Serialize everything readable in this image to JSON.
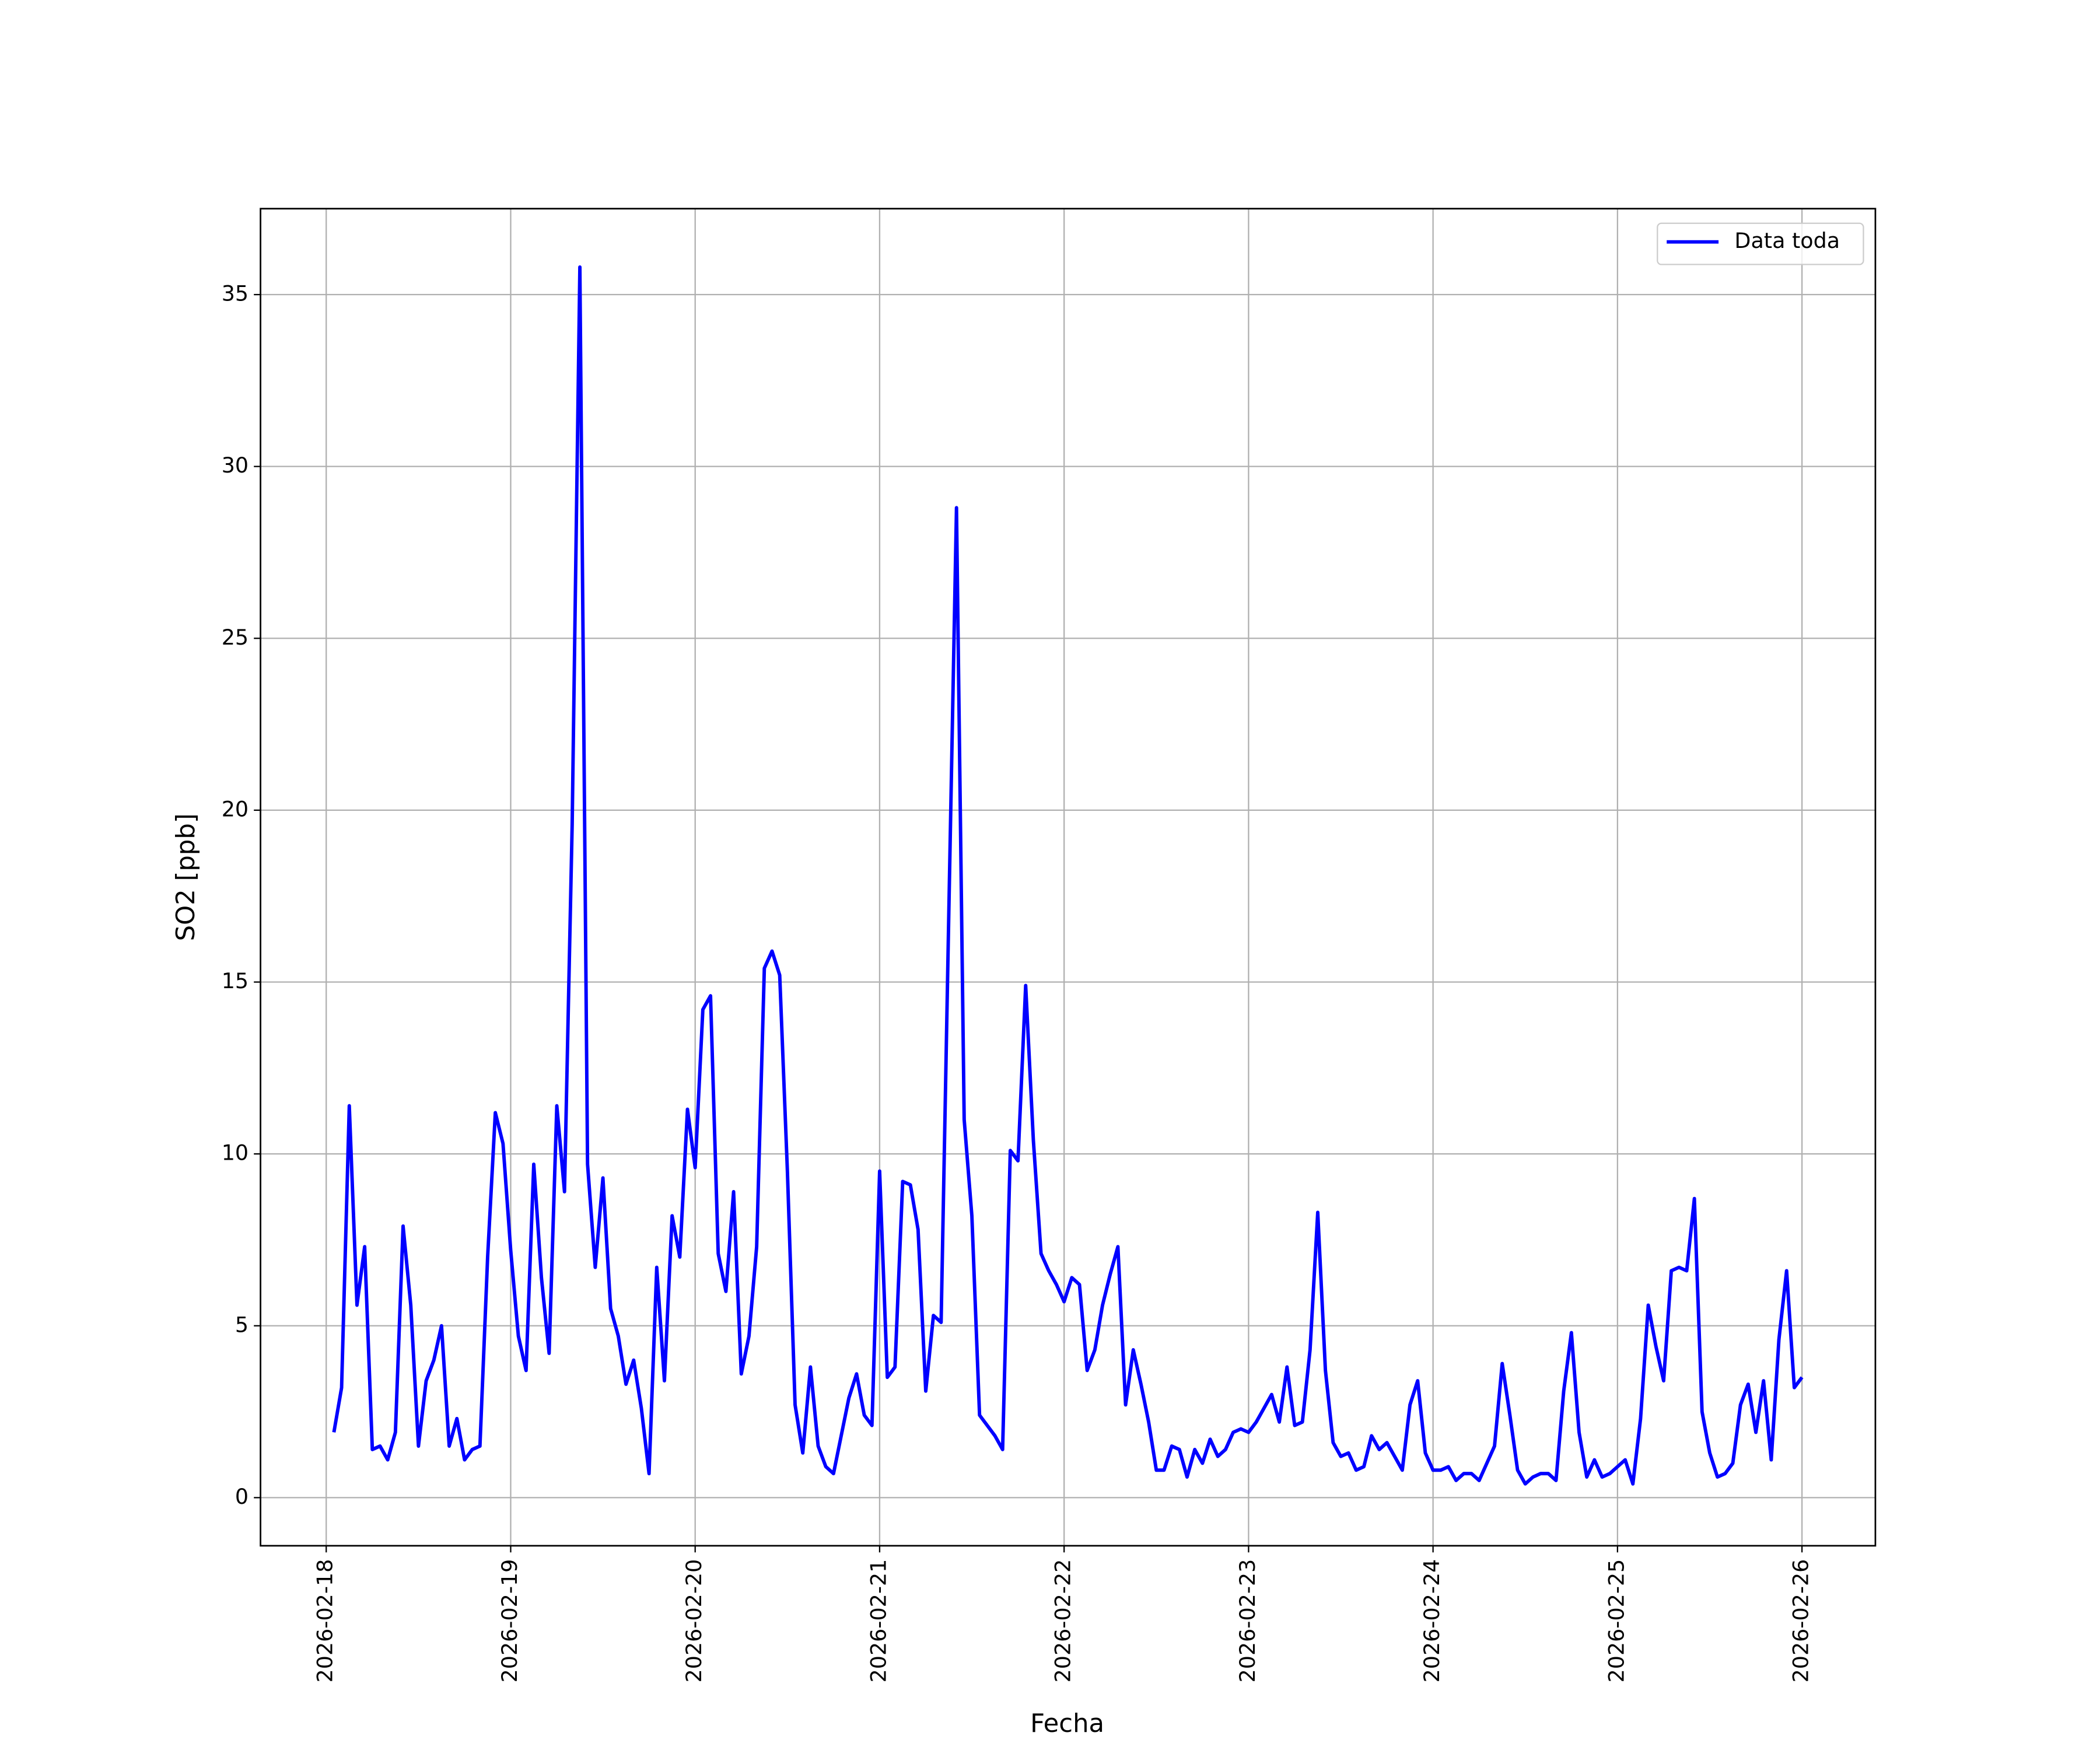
{
  "chart_data": {
    "type": "line",
    "xlabel": "Fecha",
    "ylabel": "SO2 [ppb]",
    "x": [
      "2026-02-18 01:00",
      "2026-02-18 02:00",
      "2026-02-18 03:00",
      "2026-02-18 04:00",
      "2026-02-18 05:00",
      "2026-02-18 06:00",
      "2026-02-18 07:00",
      "2026-02-18 08:00",
      "2026-02-18 09:00",
      "2026-02-18 10:00",
      "2026-02-18 11:00",
      "2026-02-18 12:00",
      "2026-02-18 13:00",
      "2026-02-18 14:00",
      "2026-02-18 15:00",
      "2026-02-18 16:00",
      "2026-02-18 17:00",
      "2026-02-18 18:00",
      "2026-02-18 19:00",
      "2026-02-18 20:00",
      "2026-02-18 21:00",
      "2026-02-18 22:00",
      "2026-02-18 23:00",
      "2026-02-19 00:00",
      "2026-02-19 01:00",
      "2026-02-19 02:00",
      "2026-02-19 03:00",
      "2026-02-19 04:00",
      "2026-02-19 05:00",
      "2026-02-19 06:00",
      "2026-02-19 07:00",
      "2026-02-19 08:00",
      "2026-02-19 09:00",
      "2026-02-19 10:00",
      "2026-02-19 11:00",
      "2026-02-19 12:00",
      "2026-02-19 13:00",
      "2026-02-19 14:00",
      "2026-02-19 15:00",
      "2026-02-19 16:00",
      "2026-02-19 17:00",
      "2026-02-19 18:00",
      "2026-02-19 19:00",
      "2026-02-19 20:00",
      "2026-02-19 21:00",
      "2026-02-19 22:00",
      "2026-02-19 23:00",
      "2026-02-20 00:00",
      "2026-02-20 01:00",
      "2026-02-20 02:00",
      "2026-02-20 03:00",
      "2026-02-20 04:00",
      "2026-02-20 05:00",
      "2026-02-20 06:00",
      "2026-02-20 07:00",
      "2026-02-20 08:00",
      "2026-02-20 09:00",
      "2026-02-20 10:00",
      "2026-02-20 11:00",
      "2026-02-20 12:00",
      "2026-02-20 13:00",
      "2026-02-20 14:00",
      "2026-02-20 15:00",
      "2026-02-20 16:00",
      "2026-02-20 17:00",
      "2026-02-20 18:00",
      "2026-02-20 19:00",
      "2026-02-20 20:00",
      "2026-02-20 21:00",
      "2026-02-20 22:00",
      "2026-02-20 23:00",
      "2026-02-21 00:00",
      "2026-02-21 01:00",
      "2026-02-21 02:00",
      "2026-02-21 03:00",
      "2026-02-21 04:00",
      "2026-02-21 05:00",
      "2026-02-21 06:00",
      "2026-02-21 07:00",
      "2026-02-21 08:00",
      "2026-02-21 09:00",
      "2026-02-21 10:00",
      "2026-02-21 11:00",
      "2026-02-21 12:00",
      "2026-02-21 13:00",
      "2026-02-21 14:00",
      "2026-02-21 15:00",
      "2026-02-21 16:00",
      "2026-02-21 17:00",
      "2026-02-21 18:00",
      "2026-02-21 19:00",
      "2026-02-21 20:00",
      "2026-02-21 21:00",
      "2026-02-21 22:00",
      "2026-02-21 23:00",
      "2026-02-22 00:00",
      "2026-02-22 01:00",
      "2026-02-22 02:00",
      "2026-02-22 03:00",
      "2026-02-22 04:00",
      "2026-02-22 05:00",
      "2026-02-22 06:00",
      "2026-02-22 07:00",
      "2026-02-22 08:00",
      "2026-02-22 09:00",
      "2026-02-22 10:00",
      "2026-02-22 11:00",
      "2026-02-22 12:00",
      "2026-02-22 13:00",
      "2026-02-22 14:00",
      "2026-02-22 15:00",
      "2026-02-22 16:00",
      "2026-02-22 17:00",
      "2026-02-22 18:00",
      "2026-02-22 19:00",
      "2026-02-22 20:00",
      "2026-02-22 21:00",
      "2026-02-22 22:00",
      "2026-02-22 23:00",
      "2026-02-23 00:00",
      "2026-02-23 01:00",
      "2026-02-23 02:00",
      "2026-02-23 03:00",
      "2026-02-23 04:00",
      "2026-02-23 05:00",
      "2026-02-23 06:00",
      "2026-02-23 07:00",
      "2026-02-23 08:00",
      "2026-02-23 09:00",
      "2026-02-23 10:00",
      "2026-02-23 11:00",
      "2026-02-23 12:00",
      "2026-02-23 13:00",
      "2026-02-23 14:00",
      "2026-02-23 15:00",
      "2026-02-23 16:00",
      "2026-02-23 17:00",
      "2026-02-23 18:00",
      "2026-02-23 19:00",
      "2026-02-23 20:00",
      "2026-02-23 21:00",
      "2026-02-23 22:00",
      "2026-02-23 23:00",
      "2026-02-24 00:00",
      "2026-02-24 01:00",
      "2026-02-24 02:00",
      "2026-02-24 03:00",
      "2026-02-24 04:00",
      "2026-02-24 05:00",
      "2026-02-24 06:00",
      "2026-02-24 07:00",
      "2026-02-24 08:00",
      "2026-02-24 09:00",
      "2026-02-24 10:00",
      "2026-02-24 11:00",
      "2026-02-24 12:00",
      "2026-02-24 13:00",
      "2026-02-24 14:00",
      "2026-02-24 15:00",
      "2026-02-24 16:00",
      "2026-02-24 17:00",
      "2026-02-24 18:00",
      "2026-02-24 19:00",
      "2026-02-24 20:00",
      "2026-02-24 21:00",
      "2026-02-24 22:00",
      "2026-02-24 23:00",
      "2026-02-25 00:00",
      "2026-02-25 01:00",
      "2026-02-25 02:00",
      "2026-02-25 03:00",
      "2026-02-25 04:00",
      "2026-02-25 05:00",
      "2026-02-25 06:00",
      "2026-02-25 07:00",
      "2026-02-25 08:00",
      "2026-02-25 09:00",
      "2026-02-25 10:00",
      "2026-02-25 11:00",
      "2026-02-25 12:00",
      "2026-02-25 13:00",
      "2026-02-25 14:00",
      "2026-02-25 15:00",
      "2026-02-25 16:00",
      "2026-02-25 17:00",
      "2026-02-25 18:00",
      "2026-02-25 19:00",
      "2026-02-25 20:00",
      "2026-02-25 21:00",
      "2026-02-25 22:00",
      "2026-02-25 23:00",
      "2026-02-26 00:00"
    ],
    "series": [
      {
        "name": "Data toda",
        "color": "#0000ff",
        "values": [
          1.9,
          3.2,
          11.4,
          5.6,
          7.3,
          1.4,
          1.5,
          1.1,
          1.9,
          7.9,
          5.6,
          1.5,
          3.4,
          4.0,
          5.0,
          1.5,
          2.3,
          1.1,
          1.4,
          1.5,
          7.0,
          11.2,
          10.3,
          7.2,
          4.7,
          3.7,
          9.7,
          6.4,
          4.2,
          11.4,
          8.9,
          19.6,
          35.8,
          9.7,
          6.7,
          9.3,
          5.5,
          4.7,
          3.3,
          4.0,
          2.6,
          0.7,
          6.7,
          3.4,
          8.2,
          7.0,
          11.3,
          9.6,
          14.2,
          14.6,
          7.1,
          6.0,
          8.9,
          3.6,
          4.7,
          7.3,
          15.4,
          15.9,
          15.2,
          9.5,
          2.7,
          1.3,
          3.8,
          1.5,
          0.9,
          0.7,
          1.8,
          2.9,
          3.6,
          2.4,
          2.1,
          9.5,
          3.5,
          3.8,
          9.2,
          9.1,
          7.8,
          3.1,
          5.3,
          5.1,
          17.0,
          28.8,
          11.0,
          8.2,
          2.4,
          2.1,
          1.8,
          1.4,
          10.1,
          9.8,
          14.9,
          10.4,
          7.1,
          6.6,
          6.2,
          5.7,
          6.4,
          6.2,
          3.7,
          4.3,
          5.6,
          6.5,
          7.3,
          2.7,
          4.3,
          3.3,
          2.2,
          0.8,
          0.8,
          1.5,
          1.4,
          0.6,
          1.4,
          1.0,
          1.7,
          1.2,
          1.4,
          1.9,
          2.0,
          1.9,
          2.2,
          2.6,
          3.0,
          2.2,
          3.8,
          2.1,
          2.2,
          4.3,
          8.3,
          3.7,
          1.6,
          1.2,
          1.3,
          0.8,
          0.9,
          1.8,
          1.4,
          1.6,
          1.2,
          0.8,
          2.7,
          3.4,
          1.3,
          0.8,
          0.8,
          0.9,
          0.5,
          0.7,
          0.7,
          0.5,
          1.0,
          1.5,
          3.9,
          2.4,
          0.8,
          0.4,
          0.6,
          0.7,
          0.7,
          0.5,
          3.1,
          4.8,
          1.9,
          0.6,
          1.1,
          0.6,
          0.7,
          0.9,
          1.1,
          0.4,
          2.3,
          5.6,
          4.4,
          3.4,
          6.6,
          6.7,
          6.6,
          8.7,
          2.5,
          1.3,
          0.6,
          0.7,
          1.0,
          2.7,
          3.3,
          1.9,
          3.4,
          1.1,
          4.6,
          6.6,
          3.2,
          3.5
        ]
      }
    ],
    "xlim": [
      "2026-02-17 15:27",
      "2026-02-26 09:33"
    ],
    "xticks": [
      "2026-02-18",
      "2026-02-19",
      "2026-02-20",
      "2026-02-21",
      "2026-02-22",
      "2026-02-23",
      "2026-02-24",
      "2026-02-25",
      "2026-02-26"
    ],
    "ylim": [
      -1.4,
      37.5
    ],
    "yticks": [
      0,
      5,
      10,
      15,
      20,
      25,
      30,
      35
    ],
    "grid": true,
    "legend": "upper right"
  }
}
